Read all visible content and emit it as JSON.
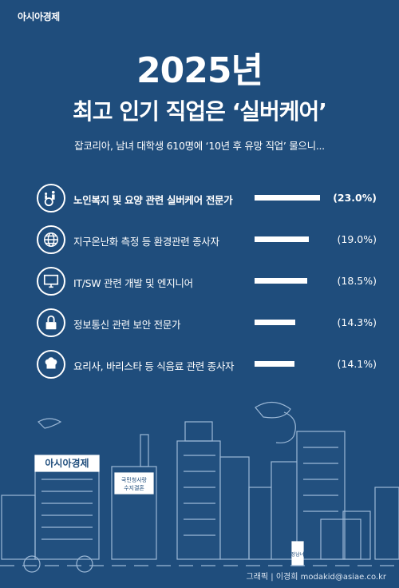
{
  "brand": "아시아경제",
  "chart_data": {
    "type": "bar",
    "title": "2025년",
    "subtitle": "최고 인기 직업은 ‘실버케어’",
    "description": "잡코리아, 남녀 대학생 610명에 ‘10년 후 유망 직업’ 물으니...",
    "categories": [
      "노인복지 및 요양 관련 실버케어 전문가",
      "지구온난화 측정 등 환경관련 종사자",
      "IT/SW 관련 개발 및 엔지니어",
      "정보통신 관련 보안 전문가",
      "요리사, 바리스타 등 식음료 관련 종사자"
    ],
    "values": [
      23.0,
      19.0,
      18.5,
      14.3,
      14.1
    ],
    "value_labels": [
      "(23.0%)",
      "(19.0%)",
      "(18.5%)",
      "(14.3%)",
      "(14.1%)"
    ],
    "icons": [
      "wheelchair-caregiver-icon",
      "globe-icon",
      "monitor-icon",
      "lock-icon",
      "chef-hat-icon"
    ],
    "unit": "%",
    "colors": {
      "background": "#1f4d7c",
      "bar": "#ffffff"
    }
  },
  "skyline": {
    "sign_company": "아시아경제",
    "sign_pension": "국민청사랑\n수지결혼",
    "sign_vertical": "장남녀"
  },
  "credit": "그래픽 | 이경희 modakid@asiae.co.kr"
}
